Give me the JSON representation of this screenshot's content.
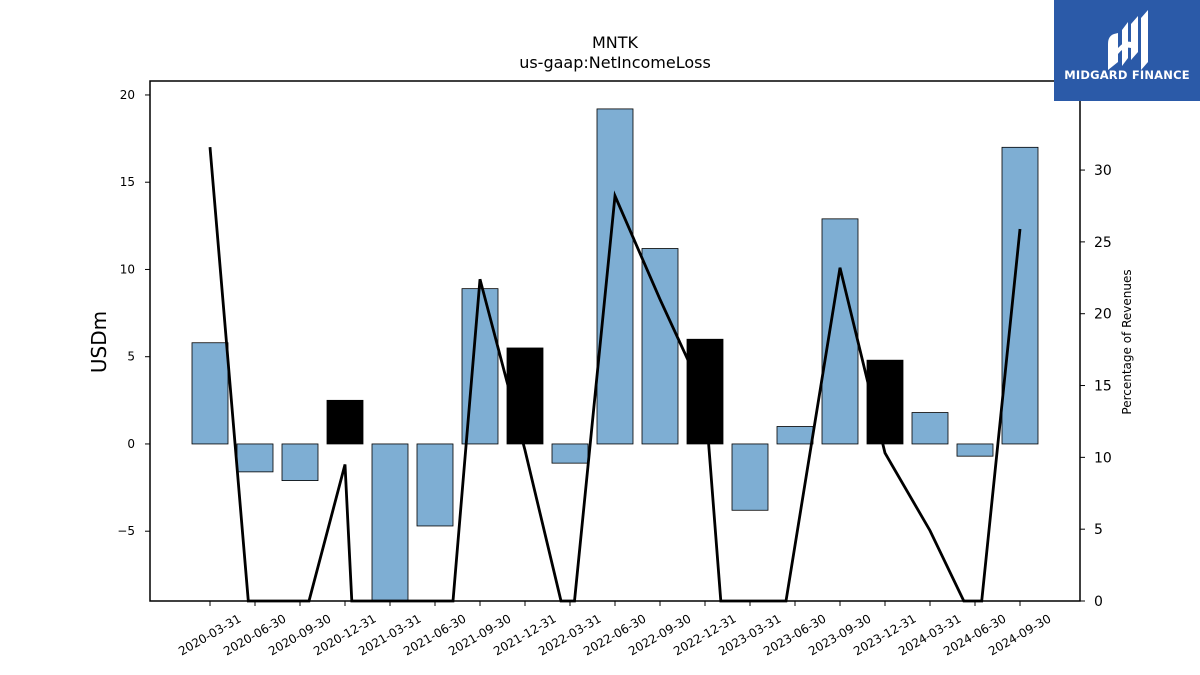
{
  "brand": {
    "name": "MIDGARD FINANCE",
    "color": "#2b5aa8"
  },
  "chart_data": {
    "type": "bar",
    "title": "MNTK",
    "subtitle": "us-gaap:NetIncomeLoss",
    "ylabel": "USDm",
    "y2label": "Percentage of Revenues",
    "ylim": [
      -9,
      20.8
    ],
    "y2lim": [
      0,
      36.2
    ],
    "yticks": [
      -5,
      0,
      5,
      10,
      15,
      20
    ],
    "y2ticks": [
      0,
      5,
      10,
      15,
      20,
      25,
      30
    ],
    "categories": [
      "2020-03-31",
      "2020-06-30",
      "2020-09-30",
      "2020-12-31",
      "2021-03-31",
      "2021-06-30",
      "2021-09-30",
      "2021-12-31",
      "2022-03-31",
      "2022-06-30",
      "2022-09-30",
      "2022-12-31",
      "2023-03-31",
      "2023-06-30",
      "2023-09-30",
      "2023-12-31",
      "2024-03-31",
      "2024-06-30",
      "2024-09-30"
    ],
    "series": [
      {
        "kind": "bar",
        "values": [
          5.8,
          -1.6,
          -2.1,
          2.5,
          -9.0,
          -4.7,
          8.9,
          5.5,
          -1.1,
          19.2,
          11.2,
          6.0,
          -3.8,
          1.0,
          12.9,
          4.8,
          1.8,
          -0.7,
          17.0
        ],
        "colors": [
          "#7eaed3",
          "#7eaed3",
          "#7eaed3",
          "#000000",
          "#7eaed3",
          "#7eaed3",
          "#7eaed3",
          "#000000",
          "#7eaed3",
          "#7eaed3",
          "#7eaed3",
          "#000000",
          "#7eaed3",
          "#7eaed3",
          "#7eaed3",
          "#000000",
          "#7eaed3",
          "#7eaed3",
          "#7eaed3"
        ]
      },
      {
        "kind": "line",
        "axis": "right",
        "color": "#000000",
        "points": [
          [
            0,
            31.6
          ],
          [
            0.85,
            0
          ],
          [
            2.2,
            0
          ],
          [
            3.0,
            9.5
          ],
          [
            3.15,
            0
          ],
          [
            5.4,
            0
          ],
          [
            6.0,
            22.4
          ],
          [
            7.0,
            10.5
          ],
          [
            7.8,
            0
          ],
          [
            8.1,
            0
          ],
          [
            9.0,
            28.2
          ],
          [
            10.0,
            21.0
          ],
          [
            11.0,
            14.2
          ],
          [
            11.35,
            0
          ],
          [
            12.8,
            0
          ],
          [
            14.0,
            23.2
          ],
          [
            15.0,
            10.3
          ],
          [
            16.0,
            4.9
          ],
          [
            16.75,
            0
          ],
          [
            17.15,
            0
          ],
          [
            18.0,
            25.9
          ]
        ]
      }
    ],
    "grid": false
  }
}
